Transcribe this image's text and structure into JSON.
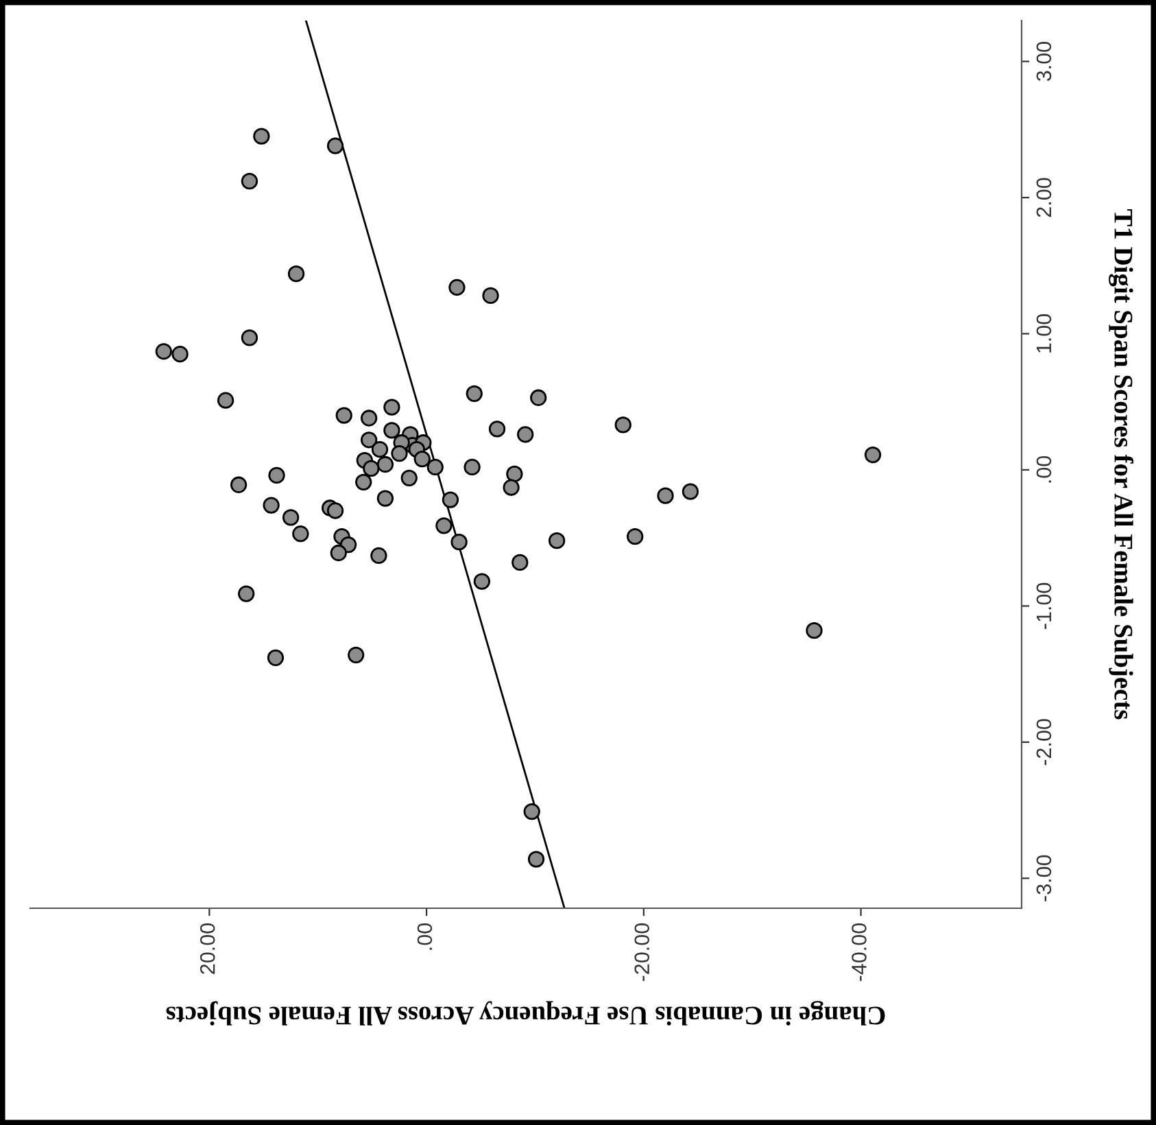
{
  "chart_data": {
    "type": "scatter",
    "xlabel": "Change in Cannabis Use Frequency Across All Female Subjects",
    "ylabel": "T1 Digit Span Scores for All Female Subjects",
    "xlim": [
      36.5,
      -54.8
    ],
    "ylim": [
      -3.22,
      3.3
    ],
    "xticks": [
      {
        "value": 20,
        "label": "20.00"
      },
      {
        "value": 0,
        "label": ".00"
      },
      {
        "value": -20,
        "label": "-20.00"
      },
      {
        "value": -40,
        "label": "-40.00"
      }
    ],
    "yticks": [
      {
        "value": 3,
        "label": "3.00"
      },
      {
        "value": 2,
        "label": "2.00"
      },
      {
        "value": 1,
        "label": "1.00"
      },
      {
        "value": 0,
        "label": ".00"
      },
      {
        "value": -1,
        "label": "-1.00"
      },
      {
        "value": -2,
        "label": "-2.00"
      },
      {
        "value": -3,
        "label": "-3.00"
      }
    ],
    "grid": false,
    "legend": false,
    "marker": "circle",
    "series": [
      {
        "color": "#8c8c8c",
        "x": [
          15.2,
          8.4,
          16.3,
          12.0,
          -2.8,
          -5.9,
          16.3,
          24.2,
          22.7,
          18.5,
          -4.4,
          -10.3,
          7.6,
          3.2,
          5.3,
          -18.1,
          -6.5,
          -9.1,
          5.3,
          3.2,
          1.5,
          1.3,
          0.3,
          2.3,
          4.3,
          2.5,
          0.9,
          5.7,
          3.8,
          5.1,
          0.4,
          -0.8,
          1.6,
          5.8,
          3.8,
          -41.1,
          -4.2,
          -8.1,
          -7.8,
          13.8,
          17.3,
          -24.3,
          -22.0,
          -2.2,
          14.3,
          8.9,
          8.4,
          12.5,
          -1.6,
          11.6,
          -19.2,
          7.8,
          -12.0,
          -3.0,
          7.2,
          8.1,
          4.4,
          -8.6,
          -5.1,
          16.6,
          -35.7,
          13.9,
          6.5,
          -9.7,
          -10.1
        ],
        "values": [
          2.45,
          2.38,
          2.12,
          1.44,
          1.34,
          1.28,
          0.97,
          0.87,
          0.85,
          0.51,
          0.56,
          0.53,
          0.4,
          0.46,
          0.38,
          0.33,
          0.3,
          0.26,
          0.22,
          0.29,
          0.26,
          0.18,
          0.2,
          0.2,
          0.15,
          0.12,
          0.15,
          0.07,
          0.04,
          0.01,
          0.08,
          0.02,
          -0.06,
          -0.09,
          -0.21,
          0.11,
          0.02,
          -0.03,
          -0.13,
          -0.04,
          -0.11,
          -0.16,
          -0.19,
          -0.22,
          -0.26,
          -0.28,
          -0.3,
          -0.35,
          -0.41,
          -0.47,
          -0.49,
          -0.49,
          -0.52,
          -0.53,
          -0.55,
          -0.61,
          -0.63,
          -0.68,
          -0.82,
          -0.91,
          -1.18,
          -1.38,
          -1.36,
          -2.51,
          -2.86
        ]
      },
      {
        "type": "line",
        "color": "#000000",
        "marker": "none",
        "x": [
          11.1,
          -12.7
        ],
        "values": [
          3.3,
          -3.22
        ]
      }
    ]
  }
}
